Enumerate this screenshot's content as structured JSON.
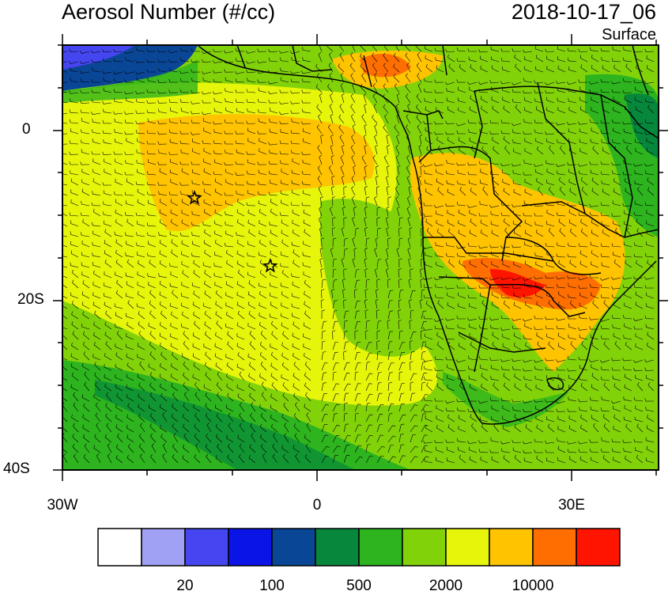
{
  "title": "Aerosol Number (#/cc)",
  "datetime": "2018-10-17_06",
  "level": "Surface",
  "map": {
    "lon_range": [
      -30,
      40
    ],
    "lat_range": [
      -40,
      10
    ],
    "lat_labels": [
      "0",
      "20S",
      "40S"
    ],
    "lon_labels": [
      "30W",
      "0",
      "30E"
    ],
    "markers": [
      {
        "name": "star",
        "lon": -14.5,
        "lat": -8
      },
      {
        "name": "star",
        "lon": -5.6,
        "lat": -16
      }
    ]
  },
  "colorbar": {
    "colors": [
      "#ffffff",
      "#a0a0f5",
      "#4646f0",
      "#0a14e6",
      "#0a4696",
      "#06873c",
      "#2db41e",
      "#82d20a",
      "#e6f50a",
      "#ffc300",
      "#ff6e00",
      "#ff1400"
    ],
    "labels": [
      "20",
      "100",
      "500",
      "2000",
      "10000"
    ]
  }
}
